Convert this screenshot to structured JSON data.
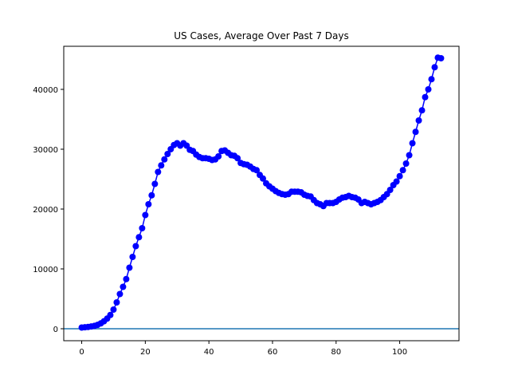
{
  "chart_data": {
    "type": "line",
    "title": "US Cases, Average Over Past 7 Days",
    "xlabel": "",
    "ylabel": "",
    "xlim": [
      -5.65,
      118.65
    ],
    "ylim": [
      -2000,
      47200
    ],
    "x_ticks": [
      0,
      20,
      40,
      60,
      80,
      100
    ],
    "y_ticks": [
      0,
      10000,
      20000,
      30000,
      40000
    ],
    "grid": false,
    "legend": "none",
    "colors": {
      "series": "#0000ff",
      "baseline": "#1f77b4",
      "axes": "#000000"
    },
    "baseline": 0,
    "series": [
      {
        "x": [
          0,
          1,
          2,
          3,
          4,
          5,
          6,
          7,
          8,
          9,
          10,
          11,
          12,
          13,
          14,
          15,
          16,
          17,
          18,
          19,
          20,
          21,
          22,
          23,
          24,
          25,
          26,
          27,
          28,
          29,
          30,
          31,
          32,
          33,
          34,
          35,
          36,
          37,
          38,
          39,
          40,
          41,
          42,
          43,
          44,
          45,
          46,
          47,
          48,
          49,
          50,
          51,
          52,
          53,
          54,
          55,
          56,
          57,
          58,
          59,
          60,
          61,
          62,
          63,
          64,
          65,
          66,
          67,
          68,
          69,
          70,
          71,
          72,
          73,
          74,
          75,
          76,
          77,
          78,
          79,
          80,
          81,
          82,
          83,
          84,
          85,
          86,
          87,
          88,
          89,
          90,
          91,
          92,
          93,
          94,
          95,
          96,
          97,
          98,
          99,
          100,
          101,
          102,
          103,
          104,
          105,
          106,
          107,
          108,
          109,
          110,
          111,
          112,
          113
        ],
        "values": [
          200,
          250,
          300,
          380,
          480,
          650,
          900,
          1250,
          1700,
          2300,
          3200,
          4400,
          5800,
          7000,
          8300,
          10200,
          12000,
          13800,
          15300,
          16800,
          19000,
          20800,
          22300,
          24200,
          26200,
          27300,
          28300,
          29200,
          30000,
          30700,
          31000,
          30600,
          31000,
          30600,
          29900,
          29700,
          29100,
          28700,
          28500,
          28500,
          28400,
          28200,
          28300,
          28800,
          29700,
          29800,
          29400,
          29000,
          28900,
          28500,
          27700,
          27500,
          27400,
          27100,
          26700,
          26500,
          25700,
          25100,
          24300,
          23800,
          23400,
          23000,
          22700,
          22500,
          22400,
          22500,
          22900,
          22900,
          22900,
          22800,
          22400,
          22200,
          22100,
          21500,
          21000,
          20800,
          20500,
          21000,
          21000,
          21000,
          21200,
          21600,
          21900,
          22000,
          22200,
          22000,
          21900,
          21600,
          21000,
          21200,
          21000,
          20800,
          21000,
          21200,
          21500,
          22000,
          22500,
          23200,
          24000,
          24600,
          25500,
          26500,
          27600,
          29000,
          31000,
          32900,
          34800,
          36500,
          38700,
          40000,
          41700,
          43700,
          45300,
          45200
        ]
      }
    ]
  }
}
